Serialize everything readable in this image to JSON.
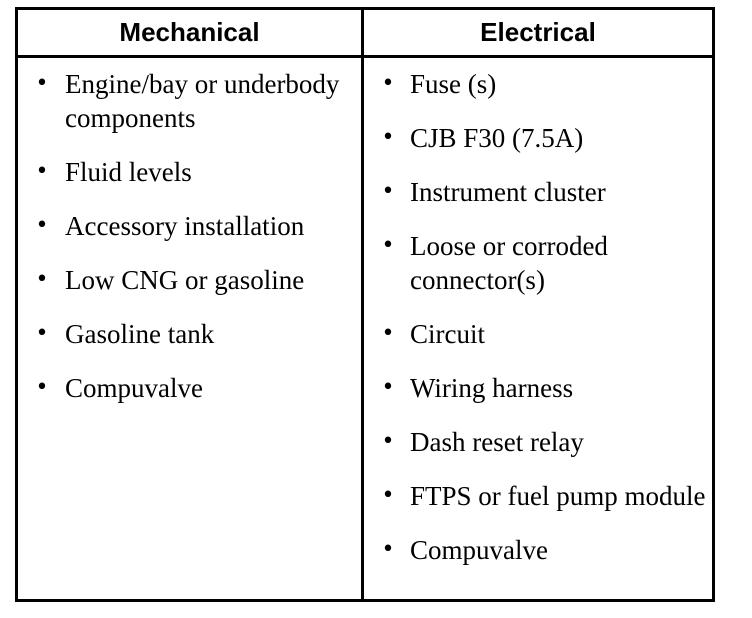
{
  "headers": {
    "left": "Mechanical",
    "right": "Electrical"
  },
  "mechanical": [
    "Engine/bay or underbody components",
    "Fluid levels",
    "Accessory installation",
    "Low CNG or gasoline",
    "Gasoline tank",
    "Compuvalve"
  ],
  "electrical": [
    "Fuse (s)",
    "CJB F30 (7.5A)",
    "Instrument cluster",
    "Loose or corroded connector(s)",
    "Circuit",
    "Wiring harness",
    "Dash reset relay",
    "FTPS or fuel pump module",
    "Compuvalve"
  ],
  "bullet_glyph": "•"
}
